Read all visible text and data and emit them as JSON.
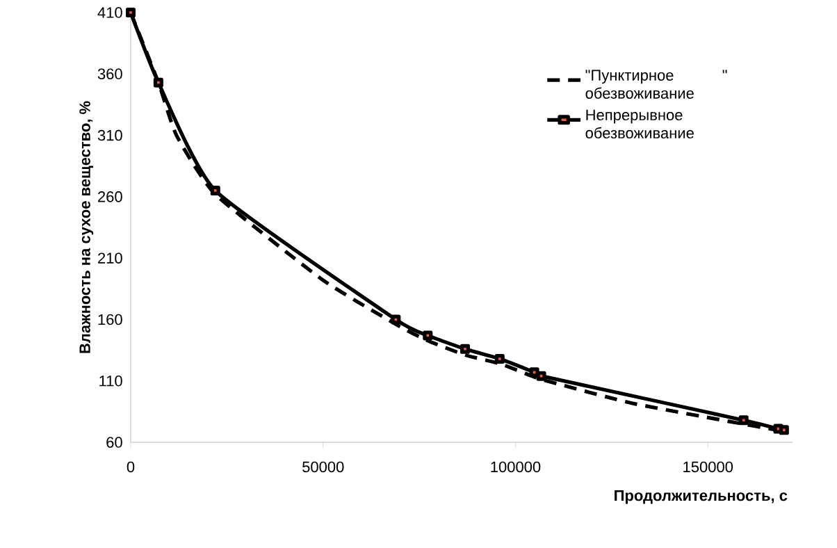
{
  "chart_data": {
    "type": "line",
    "xlabel": "Продолжительность, с",
    "ylabel": "Влажность на сухое вещество, %",
    "xlim": [
      0,
      172000
    ],
    "ylim": [
      60,
      410
    ],
    "xticks": [
      0,
      50000,
      100000,
      150000
    ],
    "yticks": [
      60,
      110,
      160,
      210,
      260,
      310,
      360,
      410
    ],
    "grid": false,
    "legend": "right",
    "line_style": "solid",
    "series": [
      {
        "name": "\"Пунктирное \" обезвоживание",
        "color": "#000000",
        "line_style": "dashed",
        "marker": "none",
        "x": [
          0,
          7200,
          11900,
          22000,
          50000,
          69000,
          77000,
          87000,
          96000,
          105000,
          107000,
          130000,
          159000,
          168000,
          170000
        ],
        "values": [
          410,
          353,
          310,
          262,
          192,
          156,
          143,
          131,
          124,
          113,
          111,
          92,
          75,
          70,
          69
        ]
      },
      {
        "name": "Непрерывное обезвоживание",
        "color": "#000000",
        "marker": "square",
        "x": [
          0,
          7200,
          22000,
          68900,
          77200,
          86900,
          95900,
          104900,
          106700,
          159300,
          168300,
          169800
        ],
        "values": [
          410,
          353,
          265,
          160,
          147,
          136,
          128,
          117,
          114,
          78,
          71,
          70
        ]
      }
    ]
  }
}
